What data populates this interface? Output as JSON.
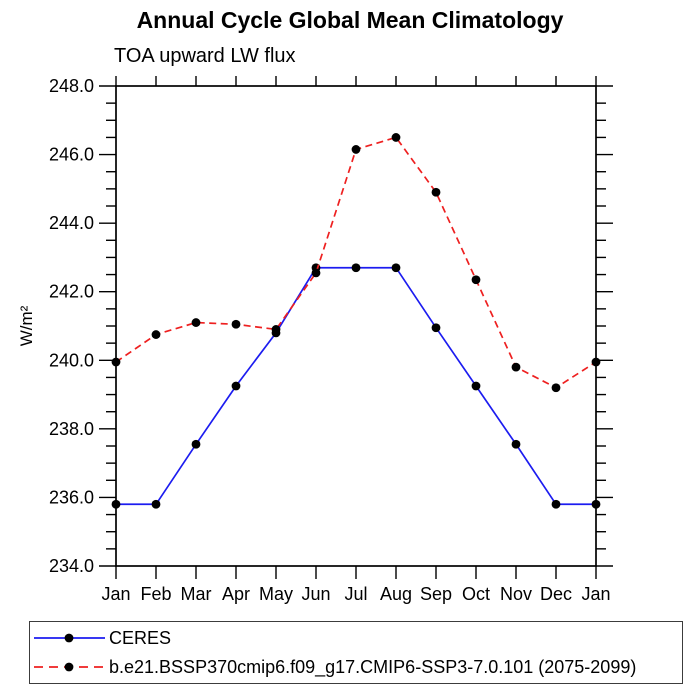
{
  "chart_data": {
    "type": "line",
    "title": "Annual Cycle Global Mean Climatology",
    "subtitle": "TOA upward LW flux",
    "xlabel": "",
    "ylabel": "W/m²",
    "categories": [
      "Jan",
      "Feb",
      "Mar",
      "Apr",
      "May",
      "Jun",
      "Jul",
      "Aug",
      "Sep",
      "Oct",
      "Nov",
      "Dec",
      "Jan"
    ],
    "series": [
      {
        "name": "CERES",
        "color": "#1c1cf0",
        "line_style": "solid",
        "marker": "filled-circle",
        "marker_color": "#000000",
        "values": [
          235.8,
          235.8,
          237.55,
          239.25,
          240.8,
          242.7,
          242.7,
          242.7,
          240.95,
          239.25,
          237.55,
          235.8,
          235.8
        ]
      },
      {
        "name": "b.e21.BSSP370cmip6.f09_g17.CMIP6-SSP3-7.0.101 (2075-2099)",
        "color": "#ee2020",
        "line_style": "dashed",
        "marker": "filled-circle",
        "marker_color": "#000000",
        "values": [
          239.95,
          240.75,
          241.1,
          241.05,
          240.9,
          242.55,
          246.15,
          246.5,
          244.9,
          242.35,
          239.8,
          239.2,
          239.95
        ]
      }
    ],
    "ylim": [
      234.0,
      248.0
    ],
    "ytick_step": 2.0,
    "yminor_step": 0.5,
    "ytick_labels": [
      "234.0",
      "236.0",
      "238.0",
      "240.0",
      "242.0",
      "244.0",
      "246.0",
      "248.0"
    ],
    "grid": false,
    "axis_color": "#000000",
    "legend_position": "bottom-left-box"
  }
}
